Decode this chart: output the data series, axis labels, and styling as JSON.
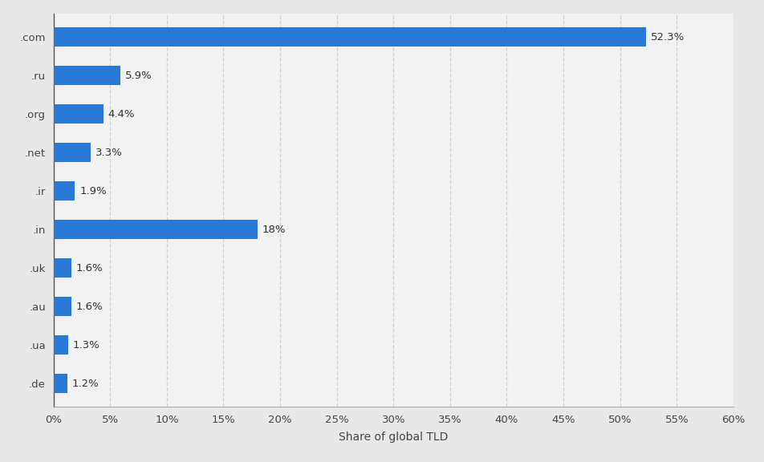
{
  "categories": [
    ".de",
    ".ua",
    ".au",
    ".uk",
    ".in",
    ".ir",
    ".net",
    ".org",
    ".ru",
    ".com"
  ],
  "values": [
    1.2,
    1.3,
    1.6,
    1.6,
    18.0,
    1.9,
    3.3,
    4.4,
    5.9,
    52.3
  ],
  "labels": [
    "1.2%",
    "1.3%",
    "1.6%",
    "1.6%",
    "18%",
    "1.9%",
    "3.3%",
    "4.4%",
    "5.9%",
    "52.3%"
  ],
  "bar_color": "#2878d6",
  "background_color": "#e8e8e8",
  "plot_bg_color": "#f2f2f2",
  "xlabel": "Share of global TLD",
  "xlim": [
    0,
    60
  ],
  "xticks": [
    0,
    5,
    10,
    15,
    20,
    25,
    30,
    35,
    40,
    45,
    50,
    55,
    60
  ],
  "xtick_labels": [
    "0%",
    "5%",
    "10%",
    "15%",
    "20%",
    "25%",
    "30%",
    "35%",
    "40%",
    "45%",
    "50%",
    "55%",
    "60%"
  ],
  "grid_color": "#d0d0d0",
  "label_fontsize": 9.5,
  "tick_fontsize": 9.5,
  "xlabel_fontsize": 10,
  "bar_height": 0.5
}
